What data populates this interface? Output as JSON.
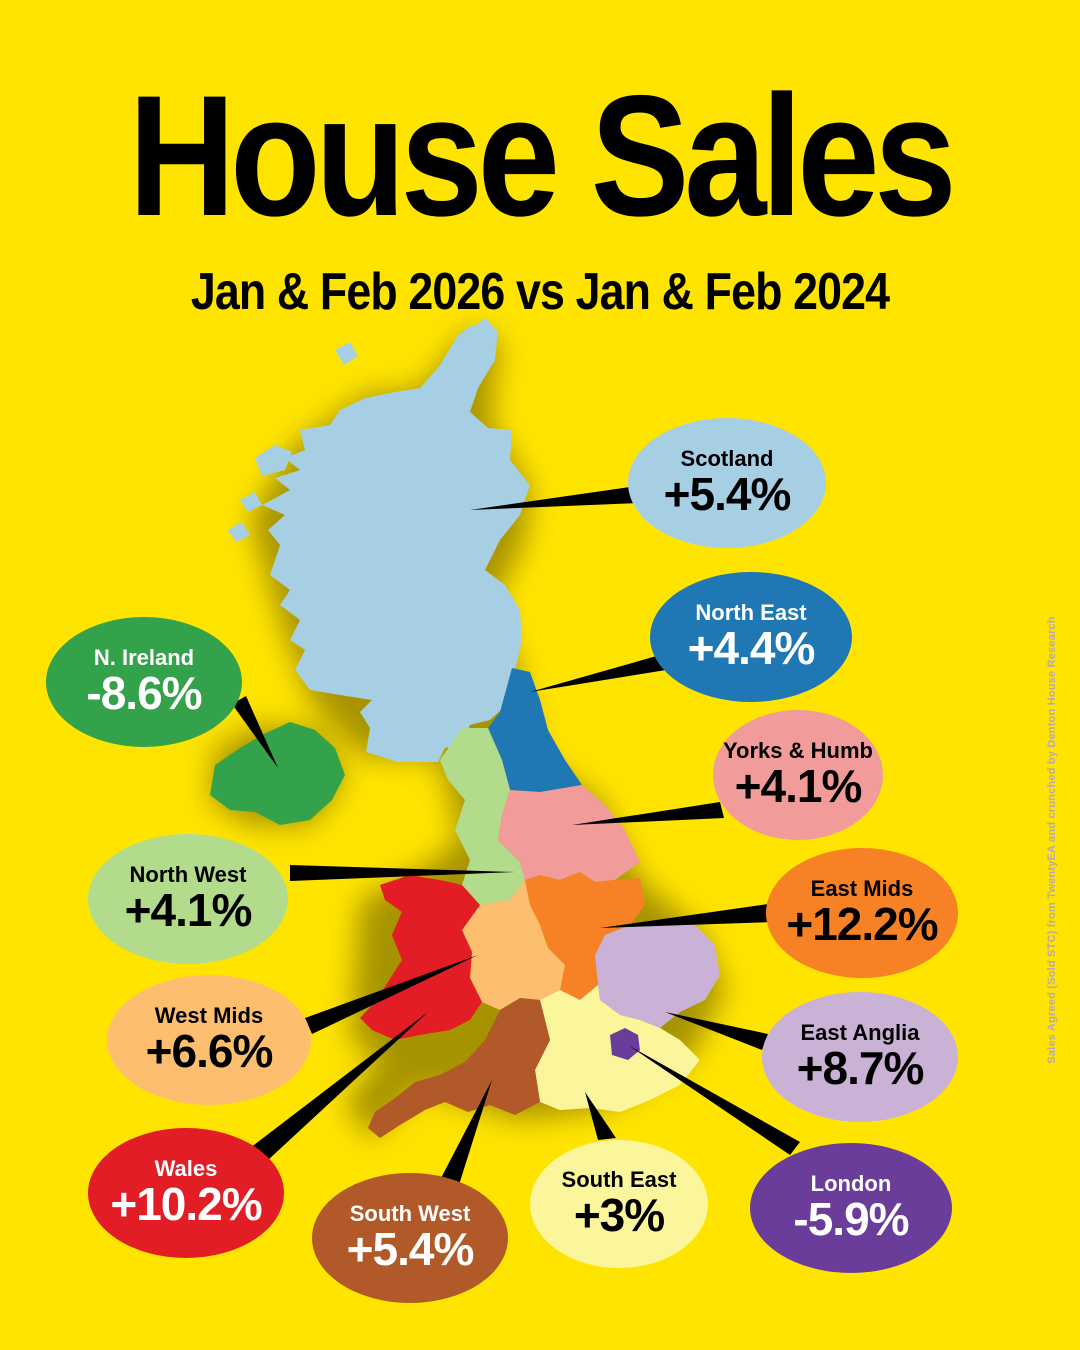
{
  "title": "House Sales",
  "subtitle": "Jan & Feb 2026 vs Jan & Feb 2024",
  "credit": "Sales Agreed (Sold STC) from TwentyEA and crunched by Denton House Research",
  "colors": {
    "background": "#FFE400",
    "text_dark": "#000000",
    "text_light": "#FFFFFF"
  },
  "regions": {
    "scotland": {
      "name": "Scotland",
      "value": "+5.4%",
      "color": "#A7CFE3",
      "text_color": "#000000"
    },
    "north_east": {
      "name": "North East",
      "value": "+4.4%",
      "color": "#1F77B4",
      "text_color": "#FFFFFF"
    },
    "n_ireland": {
      "name": "N. Ireland",
      "value": "-8.6%",
      "color": "#33A24A",
      "text_color": "#FFFFFF"
    },
    "yorks": {
      "name": "Yorks & Humb",
      "value": "+4.1%",
      "color": "#F19B9A",
      "text_color": "#000000"
    },
    "north_west": {
      "name": "North West",
      "value": "+4.1%",
      "color": "#B2DC8C",
      "text_color": "#000000"
    },
    "east_mids": {
      "name": "East Mids",
      "value": "+12.2%",
      "color": "#F68225",
      "text_color": "#000000"
    },
    "west_mids": {
      "name": "West Mids",
      "value": "+6.6%",
      "color": "#FDBF6F",
      "text_color": "#000000"
    },
    "east_anglia": {
      "name": "East Anglia",
      "value": "+8.7%",
      "color": "#CAB2D6",
      "text_color": "#000000"
    },
    "wales": {
      "name": "Wales",
      "value": "+10.2%",
      "color": "#E31D25",
      "text_color": "#FFFFFF"
    },
    "south_west": {
      "name": "South West",
      "value": "+5.4%",
      "color": "#B15928",
      "text_color": "#FFFFFF"
    },
    "south_east": {
      "name": "South East",
      "value": "+3%",
      "color": "#FBF69B",
      "text_color": "#000000"
    },
    "london": {
      "name": "London",
      "value": "-5.9%",
      "color": "#6A3D9A",
      "text_color": "#FFFFFF"
    }
  }
}
